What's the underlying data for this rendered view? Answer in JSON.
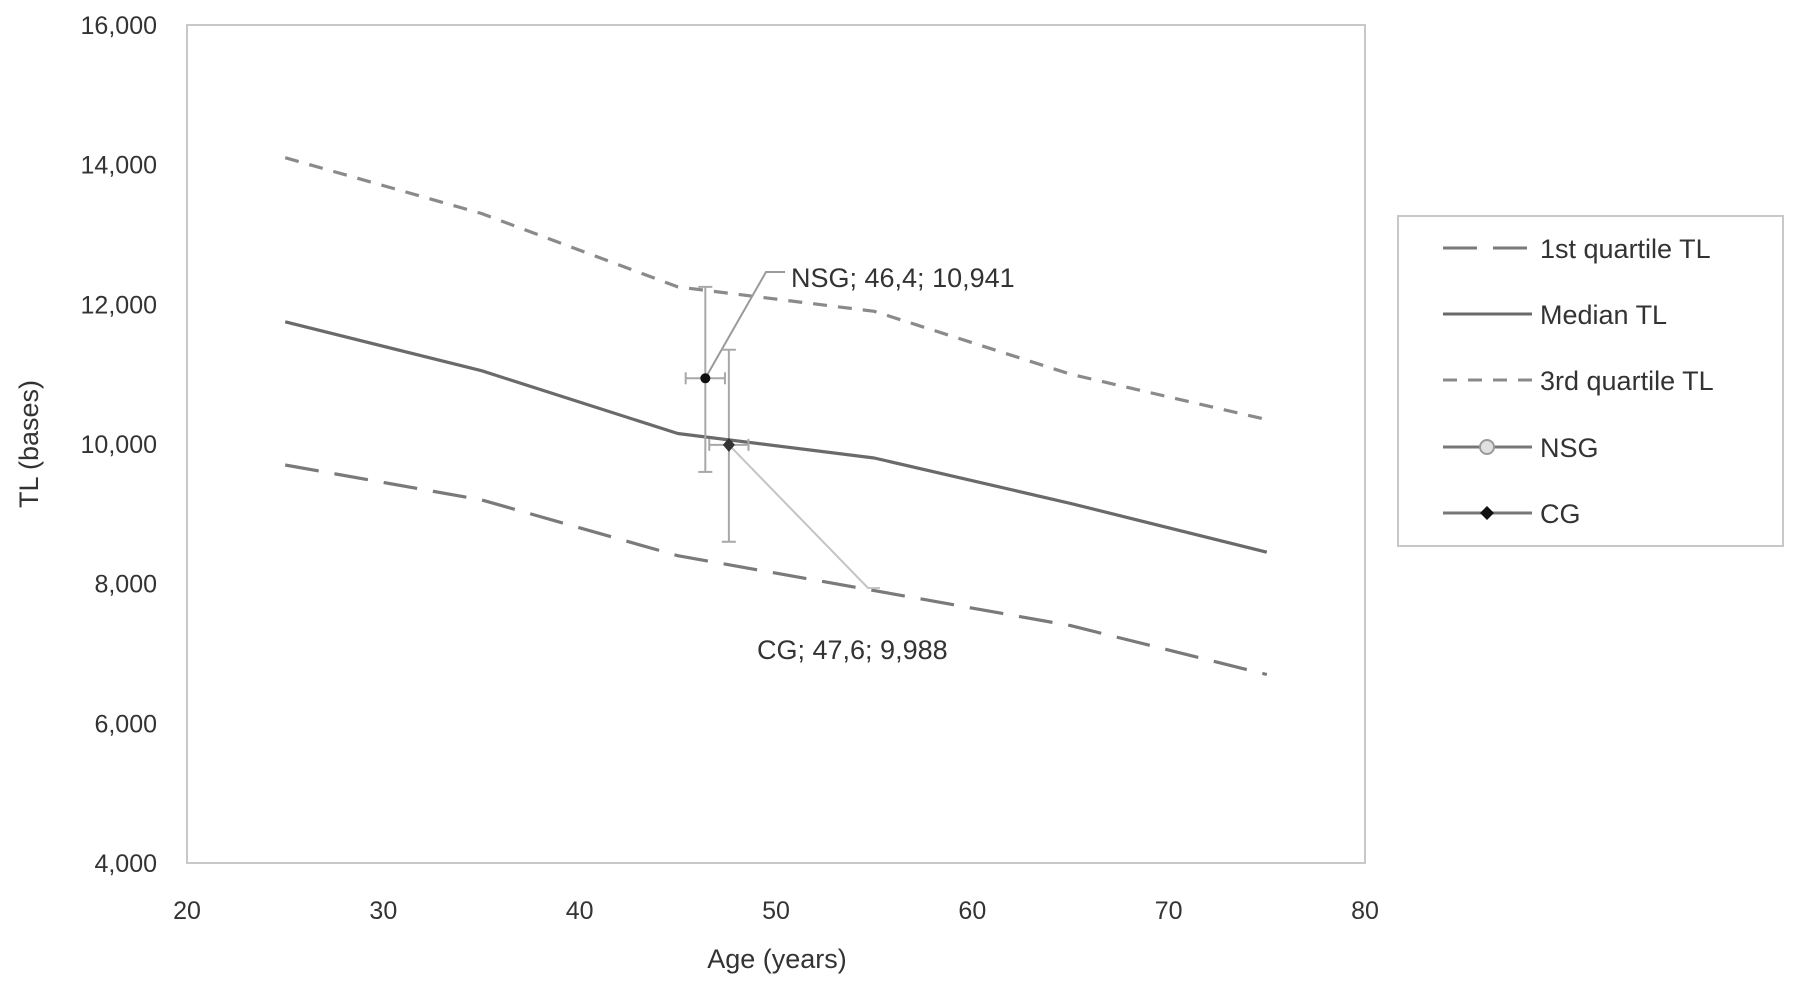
{
  "chart_data": {
    "type": "line",
    "title": "",
    "xlabel": "Age (years)",
    "ylabel": "TL (bases)",
    "xlim": [
      20,
      80
    ],
    "ylim": [
      4000,
      16000
    ],
    "grid": false,
    "legend_position": "right",
    "x_ticks": [
      20,
      30,
      40,
      50,
      60,
      70,
      80
    ],
    "x_tick_labels": [
      "20",
      "30",
      "40",
      "50",
      "60",
      "70",
      "80"
    ],
    "y_ticks": [
      4000,
      6000,
      8000,
      10000,
      12000,
      14000,
      16000
    ],
    "y_tick_labels": [
      "4,000",
      "6,000",
      "8,000",
      "10,000",
      "12,000",
      "14,000",
      "16,000"
    ],
    "series": [
      {
        "name": "1st quartile TL",
        "style": "long-dash",
        "color": "#7a7a7a",
        "x": [
          25,
          35,
          45,
          55,
          65,
          75
        ],
        "y": [
          9700,
          9200,
          8400,
          7900,
          7400,
          6700
        ]
      },
      {
        "name": "Median TL",
        "style": "solid",
        "color": "#6a6a6a",
        "x": [
          25,
          35,
          45,
          55,
          65,
          75
        ],
        "y": [
          11750,
          11050,
          10150,
          9800,
          9150,
          8450
        ]
      },
      {
        "name": "3rd quartile TL",
        "style": "short-dash",
        "color": "#8a8a8a",
        "x": [
          25,
          35,
          45,
          55,
          65,
          75
        ],
        "y": [
          14100,
          13300,
          12250,
          11900,
          11000,
          10350
        ]
      },
      {
        "name": "NSG",
        "style": "point",
        "color": "#111111",
        "x": [
          46.4
        ],
        "y": [
          10941
        ],
        "x_err": 1.0,
        "y_err": [
          9600,
          12250
        ]
      },
      {
        "name": "CG",
        "style": "point",
        "color": "#333333",
        "x": [
          47.6
        ],
        "y": [
          9988
        ],
        "x_err": 1.0,
        "y_err": [
          8600,
          11350
        ]
      }
    ],
    "annotations": [
      {
        "text": "NSG; 46,4; 10,941",
        "x": 46.4,
        "y": 10941
      },
      {
        "text": "CG; 47,6; 9,988",
        "x": 47.6,
        "y": 9988
      }
    ]
  }
}
